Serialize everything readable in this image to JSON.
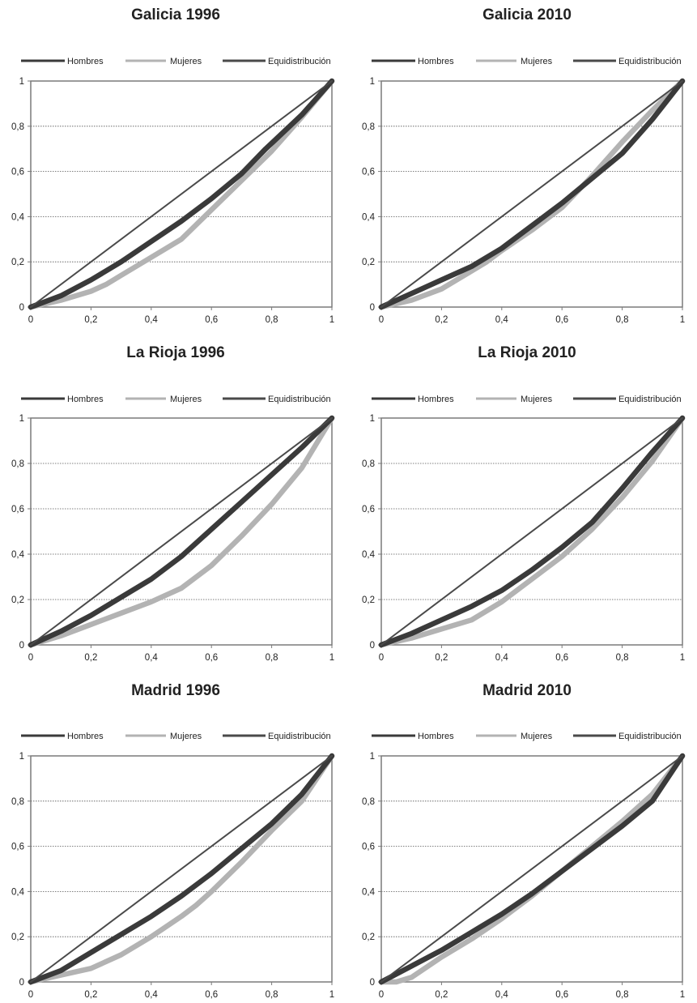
{
  "legend_entries": [
    "Hombres",
    "Mujeres",
    "Equidistribución"
  ],
  "colors": {
    "hombres": "#3a3a3a",
    "mujeres": "#b3b3b3",
    "equidistribucion": "#4a4a4a",
    "frame": "#7a7a7a",
    "grid": "#555555"
  },
  "chart_data": [
    {
      "type": "line",
      "title": "Galicia 1996",
      "xlim": [
        0,
        1
      ],
      "ylim": [
        0,
        1
      ],
      "xticks": [
        "0",
        "0,2",
        "0,4",
        "0,6",
        "0,8",
        "1"
      ],
      "yticks": [
        "0",
        "0,2",
        "0,4",
        "0,6",
        "0,8",
        "1"
      ],
      "grid": "horizontal dotted",
      "legend": "top",
      "series": [
        {
          "name": "Hombres",
          "x": [
            0,
            0.1,
            0.2,
            0.3,
            0.4,
            0.5,
            0.6,
            0.7,
            0.78,
            0.9,
            1
          ],
          "y": [
            0,
            0.05,
            0.12,
            0.2,
            0.29,
            0.38,
            0.48,
            0.59,
            0.7,
            0.85,
            1
          ]
        },
        {
          "name": "Mujeres",
          "x": [
            0,
            0.1,
            0.2,
            0.25,
            0.3,
            0.4,
            0.5,
            0.6,
            0.7,
            0.8,
            0.9,
            1
          ],
          "y": [
            0,
            0.03,
            0.07,
            0.1,
            0.14,
            0.22,
            0.3,
            0.43,
            0.56,
            0.69,
            0.84,
            1
          ]
        },
        {
          "name": "Equidistribución",
          "x": [
            0,
            1
          ],
          "y": [
            0,
            1
          ]
        }
      ]
    },
    {
      "type": "line",
      "title": "Galicia 2010",
      "xlim": [
        0,
        1
      ],
      "ylim": [
        0,
        1
      ],
      "xticks": [
        "0",
        "0,2",
        "0,4",
        "0,6",
        "0,8",
        "1"
      ],
      "yticks": [
        "0",
        "0,2",
        "0,4",
        "0,6",
        "0,8",
        "1"
      ],
      "grid": "horizontal dotted",
      "legend": "top",
      "series": [
        {
          "name": "Hombres",
          "x": [
            0,
            0.1,
            0.2,
            0.3,
            0.35,
            0.4,
            0.5,
            0.6,
            0.7,
            0.8,
            0.9,
            1
          ],
          "y": [
            0,
            0.06,
            0.12,
            0.18,
            0.22,
            0.26,
            0.36,
            0.46,
            0.57,
            0.68,
            0.83,
            1
          ]
        },
        {
          "name": "Mujeres",
          "x": [
            0,
            0.1,
            0.2,
            0.3,
            0.35,
            0.4,
            0.5,
            0.6,
            0.7,
            0.8,
            0.9,
            1
          ],
          "y": [
            0,
            0.03,
            0.08,
            0.16,
            0.2,
            0.25,
            0.34,
            0.44,
            0.58,
            0.73,
            0.87,
            1
          ]
        },
        {
          "name": "Equidistribución",
          "x": [
            0,
            1
          ],
          "y": [
            0,
            1
          ]
        }
      ]
    },
    {
      "type": "line",
      "title": "La Rioja 1996",
      "xlim": [
        0,
        1
      ],
      "ylim": [
        0,
        1
      ],
      "xticks": [
        "0",
        "0,2",
        "0,4",
        "0,6",
        "0,8",
        "1"
      ],
      "yticks": [
        "0",
        "0,2",
        "0,4",
        "0,6",
        "0,8",
        "1"
      ],
      "grid": "horizontal dotted",
      "legend": "top",
      "series": [
        {
          "name": "Hombres",
          "x": [
            0,
            0.1,
            0.2,
            0.3,
            0.4,
            0.5,
            0.6,
            0.7,
            0.8,
            0.9,
            1
          ],
          "y": [
            0,
            0.06,
            0.13,
            0.21,
            0.29,
            0.39,
            0.51,
            0.63,
            0.75,
            0.87,
            1
          ]
        },
        {
          "name": "Mujeres",
          "x": [
            0,
            0.1,
            0.2,
            0.3,
            0.4,
            0.5,
            0.6,
            0.7,
            0.8,
            0.9,
            1
          ],
          "y": [
            0,
            0.04,
            0.09,
            0.14,
            0.19,
            0.25,
            0.35,
            0.48,
            0.62,
            0.78,
            1
          ]
        },
        {
          "name": "Equidistribución",
          "x": [
            0,
            1
          ],
          "y": [
            0,
            1
          ]
        }
      ]
    },
    {
      "type": "line",
      "title": "La Rioja 2010",
      "xlim": [
        0,
        1
      ],
      "ylim": [
        0,
        1
      ],
      "xticks": [
        "0",
        "0,2",
        "0,4",
        "0,6",
        "0,8",
        "1"
      ],
      "yticks": [
        "0",
        "0,2",
        "0,4",
        "0,6",
        "0,8",
        "1"
      ],
      "grid": "horizontal dotted",
      "legend": "top",
      "series": [
        {
          "name": "Hombres",
          "x": [
            0,
            0.1,
            0.2,
            0.3,
            0.4,
            0.5,
            0.6,
            0.7,
            0.8,
            0.9,
            1
          ],
          "y": [
            0,
            0.05,
            0.11,
            0.17,
            0.24,
            0.33,
            0.43,
            0.54,
            0.69,
            0.85,
            1
          ]
        },
        {
          "name": "Mujeres",
          "x": [
            0,
            0.1,
            0.2,
            0.3,
            0.4,
            0.5,
            0.6,
            0.7,
            0.8,
            0.9,
            1
          ],
          "y": [
            0,
            0.03,
            0.07,
            0.11,
            0.19,
            0.29,
            0.39,
            0.51,
            0.65,
            0.81,
            1
          ]
        },
        {
          "name": "Equidistribución",
          "x": [
            0,
            1
          ],
          "y": [
            0,
            1
          ]
        }
      ]
    },
    {
      "type": "line",
      "title": "Madrid 1996",
      "xlim": [
        0,
        1
      ],
      "ylim": [
        0,
        1
      ],
      "xticks": [
        "0",
        "0,2",
        "0,4",
        "0,6",
        "0,8",
        "1"
      ],
      "yticks": [
        "0",
        "0,2",
        "0,4",
        "0,6",
        "0,8",
        "1"
      ],
      "grid": "horizontal dotted",
      "legend": "top",
      "series": [
        {
          "name": "Hombres",
          "x": [
            0,
            0.1,
            0.2,
            0.3,
            0.4,
            0.5,
            0.6,
            0.7,
            0.8,
            0.9,
            1
          ],
          "y": [
            0,
            0.05,
            0.13,
            0.21,
            0.29,
            0.38,
            0.48,
            0.59,
            0.7,
            0.83,
            1
          ]
        },
        {
          "name": "Mujeres",
          "x": [
            0,
            0.1,
            0.2,
            0.3,
            0.4,
            0.5,
            0.55,
            0.6,
            0.7,
            0.8,
            0.9,
            1
          ],
          "y": [
            0,
            0.03,
            0.06,
            0.12,
            0.2,
            0.29,
            0.34,
            0.4,
            0.53,
            0.67,
            0.8,
            1
          ]
        },
        {
          "name": "Equidistribución",
          "x": [
            0,
            1
          ],
          "y": [
            0,
            1
          ]
        }
      ]
    },
    {
      "type": "line",
      "title": "Madrid 2010",
      "xlim": [
        0,
        1
      ],
      "ylim": [
        0,
        1
      ],
      "xticks": [
        "0",
        "0,2",
        "0,4",
        "0,6",
        "0,8",
        "1"
      ],
      "yticks": [
        "0",
        "0,2",
        "0,4",
        "0,6",
        "0,8",
        "1"
      ],
      "grid": "horizontal dotted",
      "legend": "top",
      "series": [
        {
          "name": "Hombres",
          "x": [
            0,
            0.1,
            0.2,
            0.3,
            0.4,
            0.5,
            0.6,
            0.7,
            0.8,
            0.9,
            1
          ],
          "y": [
            0,
            0.07,
            0.14,
            0.22,
            0.3,
            0.39,
            0.49,
            0.59,
            0.69,
            0.8,
            1
          ]
        },
        {
          "name": "Mujeres",
          "x": [
            0,
            0.05,
            0.1,
            0.2,
            0.3,
            0.4,
            0.5,
            0.6,
            0.7,
            0.8,
            0.9,
            1
          ],
          "y": [
            0,
            0,
            0.02,
            0.11,
            0.19,
            0.28,
            0.38,
            0.49,
            0.6,
            0.71,
            0.83,
            1
          ]
        },
        {
          "name": "Equidistribución",
          "x": [
            0,
            1
          ],
          "y": [
            0,
            1
          ]
        }
      ]
    }
  ]
}
